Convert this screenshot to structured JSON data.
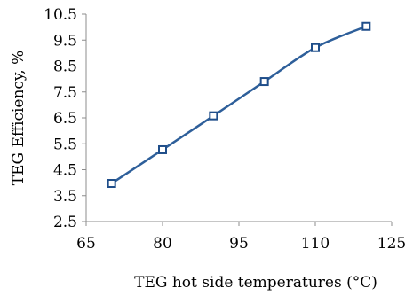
{
  "chart_data": {
    "type": "line",
    "xlabel": "TEG hot side temperatures (°C)",
    "ylabel": "TEG Efficiency, %",
    "xlim": [
      65,
      125
    ],
    "ylim": [
      2.5,
      10.5
    ],
    "x_ticks": [
      65,
      80,
      95,
      110,
      125
    ],
    "x_tick_labels": [
      "65",
      "80",
      "95",
      "110",
      "125"
    ],
    "y_ticks": [
      2.5,
      3.5,
      4.5,
      5.5,
      6.5,
      7.5,
      8.5,
      9.5,
      10.5
    ],
    "y_tick_labels": [
      "2.5",
      "3.5",
      "4.5",
      "5.5",
      "6.5",
      "7.5",
      "8.5",
      "9.5",
      "10.5"
    ],
    "grid": false,
    "legend": "none",
    "line_style": "smooth",
    "marker": "hollow-square",
    "color": "#2e5f9a",
    "series": [
      {
        "x": [
          70,
          80,
          90,
          100,
          110,
          120
        ],
        "y": [
          3.97,
          5.27,
          6.58,
          7.9,
          9.21,
          10.03
        ]
      }
    ]
  }
}
